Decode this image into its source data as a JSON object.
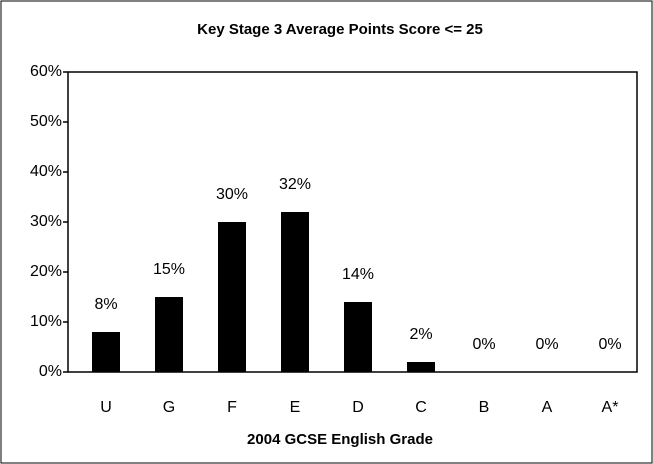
{
  "chart_data": {
    "type": "bar",
    "title": "Key Stage 3 Average Points Score <= 25",
    "x_label": "2004 GCSE English Grade",
    "categories": [
      "U",
      "G",
      "F",
      "E",
      "D",
      "C",
      "B",
      "A",
      "A*"
    ],
    "values": [
      8,
      15,
      30,
      32,
      14,
      2,
      0,
      0,
      0
    ],
    "value_labels": [
      "8%",
      "15%",
      "30%",
      "32%",
      "14%",
      "2%",
      "0%",
      "0%",
      "0%"
    ],
    "color": "#000000",
    "ylim": [
      0,
      60
    ],
    "yticks": [
      {
        "value": 0,
        "label": "0%"
      },
      {
        "value": 10,
        "label": "10%"
      },
      {
        "value": 20,
        "label": "20%"
      },
      {
        "value": 30,
        "label": "30%"
      },
      {
        "value": 40,
        "label": "40%"
      },
      {
        "value": 50,
        "label": "50%"
      },
      {
        "value": 60,
        "label": "60%"
      }
    ],
    "grid": false
  }
}
